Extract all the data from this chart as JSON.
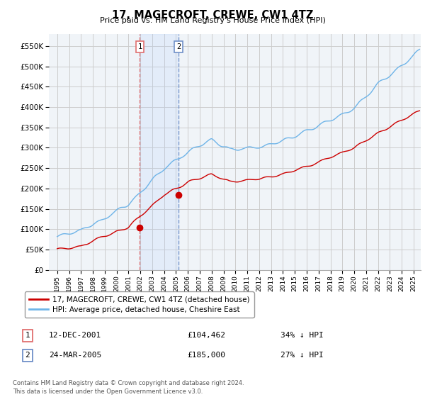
{
  "title": "17, MAGECROFT, CREWE, CW1 4TZ",
  "subtitle": "Price paid vs. HM Land Registry's House Price Index (HPI)",
  "ylabel_ticks": [
    "£0",
    "£50K",
    "£100K",
    "£150K",
    "£200K",
    "£250K",
    "£300K",
    "£350K",
    "£400K",
    "£450K",
    "£500K",
    "£550K"
  ],
  "ytick_values": [
    0,
    50000,
    100000,
    150000,
    200000,
    250000,
    300000,
    350000,
    400000,
    450000,
    500000,
    550000
  ],
  "ylim": [
    0,
    580000
  ],
  "legend_line1": "17, MAGECROFT, CREWE, CW1 4TZ (detached house)",
  "legend_line2": "HPI: Average price, detached house, Cheshire East",
  "purchase1_date": "12-DEC-2001",
  "purchase1_price": 104462,
  "purchase1_label": "1",
  "purchase1_hpi": "34% ↓ HPI",
  "purchase2_date": "24-MAR-2005",
  "purchase2_price": 185000,
  "purchase2_label": "2",
  "purchase2_hpi": "27% ↓ HPI",
  "footer": "Contains HM Land Registry data © Crown copyright and database right 2024.\nThis data is licensed under the Open Government Licence v3.0.",
  "hpi_color": "#6eb4e8",
  "price_color": "#cc0000",
  "marker_color": "#cc0000",
  "vline1_color": "#e07070",
  "vline2_color": "#7090c8",
  "shade_color": "#ddeeff",
  "bg_color": "#ffffff",
  "grid_color": "#cccccc",
  "plot_bg": "#f0f4f8"
}
